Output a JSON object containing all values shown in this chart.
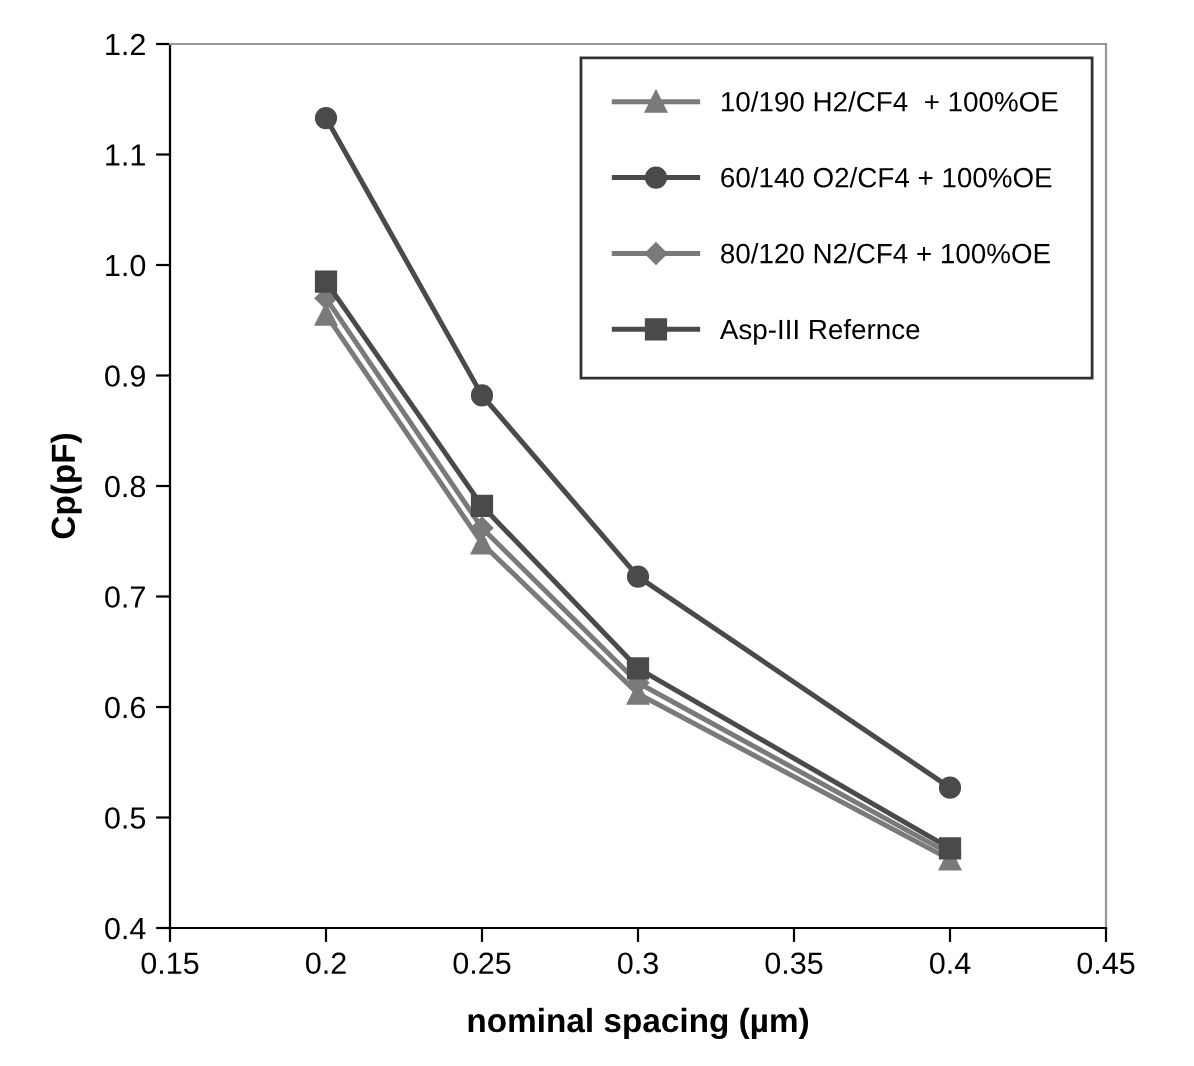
{
  "chart_data": {
    "type": "line",
    "xlabel": "nominal spacing (µm)",
    "ylabel": "Cp(pF)",
    "x": [
      0.2,
      0.25,
      0.3,
      0.4
    ],
    "series": [
      {
        "name": "10/190 H2/CF4  + 100%OE",
        "color": "#7a7a7a",
        "marker": "triangle",
        "values": [
          0.955,
          0.748,
          0.612,
          0.462
        ]
      },
      {
        "name": "60/140 O2/CF4 + 100%OE",
        "color": "#4a4a4a",
        "marker": "circle",
        "values": [
          1.133,
          0.882,
          0.718,
          0.527
        ]
      },
      {
        "name": "80/120 N2/CF4 + 100%OE",
        "color": "#7a7a7a",
        "marker": "diamond",
        "values": [
          0.97,
          0.762,
          0.622,
          0.467
        ]
      },
      {
        "name": "Asp-III Refernce",
        "color": "#4a4a4a",
        "marker": "square",
        "values": [
          0.985,
          0.782,
          0.635,
          0.472
        ]
      }
    ],
    "xlim": [
      0.15,
      0.45
    ],
    "xticks": [
      0.15,
      0.2,
      0.25,
      0.3,
      0.35,
      0.4,
      0.45
    ],
    "ylim": [
      0.4,
      1.2
    ],
    "yticks": [
      {
        "value": 0.4,
        "label": "0.4"
      },
      {
        "value": 0.5,
        "label": "0.5"
      },
      {
        "value": 0.6,
        "label": "0.6"
      },
      {
        "value": 0.7,
        "label": "0.7"
      },
      {
        "value": 0.8,
        "label": "0.8"
      },
      {
        "value": 0.9,
        "label": "0.9"
      },
      {
        "value": 1.0,
        "label": "1.0"
      },
      {
        "value": 1.1,
        "label": "1.1"
      },
      {
        "value": 1.2,
        "label": "1.2"
      }
    ],
    "grid": false,
    "legend": "top right",
    "line_style": "solid"
  }
}
